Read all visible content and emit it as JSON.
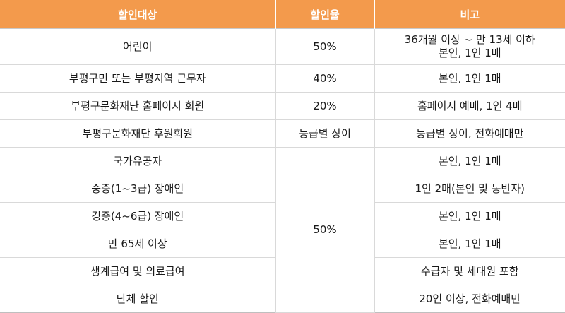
{
  "header": {
    "col1": "할인대상",
    "col2": "할인율",
    "col3": "비고"
  },
  "rows": [
    {
      "target": "어린이",
      "rate": "50%",
      "note": "36개월 이상 ~ 만 13세 이하",
      "note2": "본인, 1인 1매"
    },
    {
      "target": "부평구민 또는 부평지역 근무자",
      "rate": "40%",
      "note": "본인, 1인 1매"
    },
    {
      "target": "부평구문화재단 홈페이지 회원",
      "rate": "20%",
      "note": "홈페이지 예매, 1인 4매"
    },
    {
      "target": "부평구문화재단 후원회원",
      "rate": "등급별 상이",
      "note": "등급별 상이, 전화예매만"
    },
    {
      "target": "국가유공자",
      "note": "본인, 1인 1매"
    },
    {
      "target": "중증(1~3급) 장애인",
      "note": "1인 2매(본인 및 동반자)"
    },
    {
      "target": "경증(4~6급) 장애인",
      "note": "본인, 1인 1매"
    },
    {
      "target": "만 65세 이상",
      "note": "본인, 1인 1매"
    },
    {
      "target": "생계급여 및 의료급여",
      "note": "수급자 및 세대원 포함"
    },
    {
      "target": "단체 할인",
      "note": "20인 이상, 전화예매만"
    }
  ],
  "merged_rate": "50%"
}
